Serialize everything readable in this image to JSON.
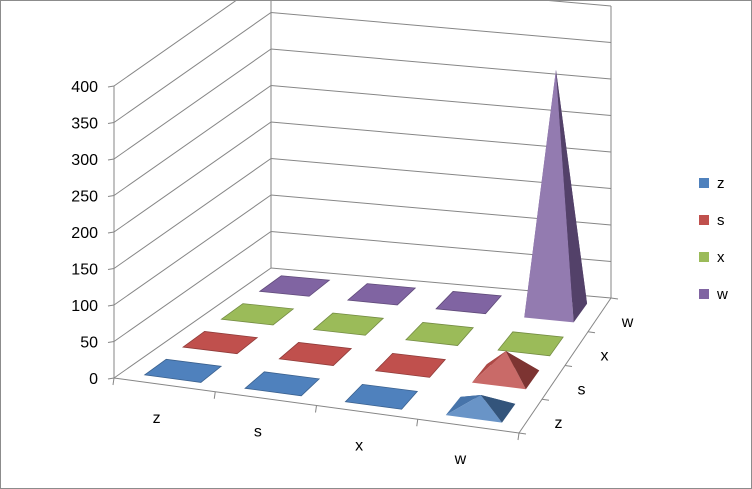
{
  "chart_data": {
    "type": "bar",
    "style": "3d-pyramid",
    "title": "",
    "categories": [
      "z",
      "s",
      "x",
      "w"
    ],
    "series": [
      {
        "name": "z",
        "color": "#4F81BD",
        "values": [
          0,
          0,
          0,
          20
        ]
      },
      {
        "name": "s",
        "color": "#C0504D",
        "values": [
          0,
          0,
          0,
          35
        ]
      },
      {
        "name": "x",
        "color": "#9BBB59",
        "values": [
          0,
          0,
          0,
          0
        ]
      },
      {
        "name": "w",
        "color": "#8064A2",
        "values": [
          0,
          0,
          0,
          330
        ]
      }
    ],
    "yticks": [
      "400",
      "350",
      "300",
      "250",
      "200",
      "150",
      "100",
      "50",
      "0"
    ],
    "ylim": [
      0,
      400
    ],
    "grid": true,
    "legend": "right"
  }
}
